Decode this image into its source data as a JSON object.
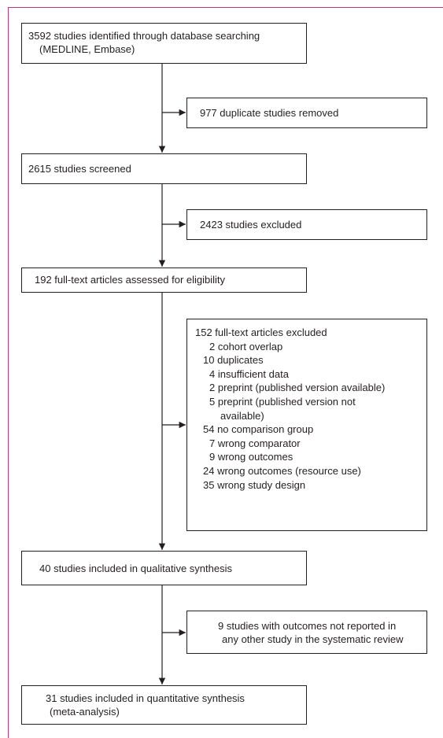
{
  "boxes": {
    "identified": {
      "line1": "3592 studies identified through database searching",
      "line2": "(MEDLINE, Embase)"
    },
    "duplicates_removed": {
      "text": "977 duplicate studies removed"
    },
    "screened": {
      "text": "2615 studies screened"
    },
    "excluded": {
      "text": "2423 studies excluded"
    },
    "fulltext_assessed": {
      "text": "192 full-text articles assessed for eligibility"
    },
    "fulltext_excluded": {
      "title": "152 full-text articles excluded",
      "reasons": [
        "2 cohort overlap",
        "10 duplicates",
        "4 insufficient data",
        "2 preprint (published version available)",
        "5 preprint (published version not",
        "available)",
        "54 no comparison group",
        "7 wrong comparator",
        "9 wrong outcomes",
        "24 wrong outcomes (resource use)",
        "35 wrong study design"
      ]
    },
    "qualitative": {
      "text": "40 studies included in qualitative synthesis"
    },
    "not_reported": {
      "line1": "9 studies with outcomes not reported in",
      "line2": "any other study in the systematic review"
    },
    "quantitative": {
      "line1": "31 studies included in quantitative synthesis",
      "line2": "(meta-analysis)"
    }
  },
  "colors": {
    "frame": "#c4357a",
    "line": "#231f20"
  }
}
